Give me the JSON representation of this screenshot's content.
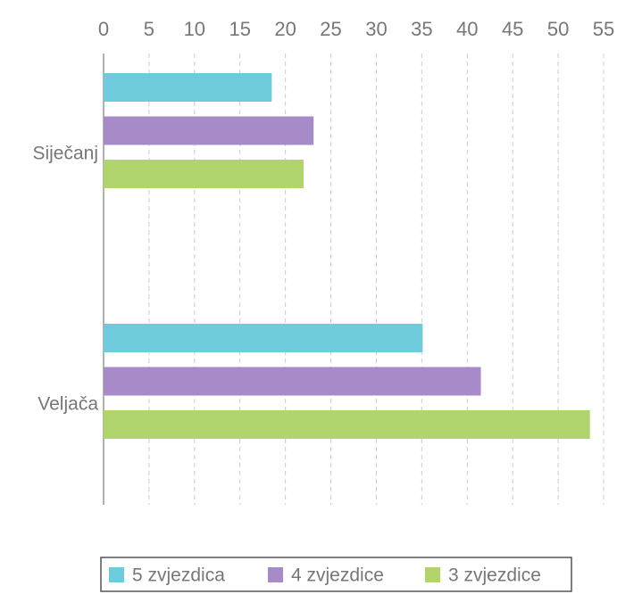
{
  "chart_data": {
    "type": "barh",
    "categories": [
      "Siječanj",
      "Veljača"
    ],
    "series": [
      {
        "name": "5 zvjezdica",
        "color": "#6dcbdc",
        "values": [
          18.5,
          35.1
        ]
      },
      {
        "name": "4 zvjezdice",
        "color": "#a78bc9",
        "values": [
          23.1,
          41.5
        ]
      },
      {
        "name": "3 zvjezdice",
        "color": "#b2d46d",
        "values": [
          22.0,
          53.5
        ]
      }
    ],
    "xlim": [
      0,
      55
    ],
    "xticks": [
      0,
      5,
      10,
      15,
      20,
      25,
      30,
      35,
      40,
      45,
      50,
      55
    ],
    "grid": true,
    "legend": "bottom"
  }
}
